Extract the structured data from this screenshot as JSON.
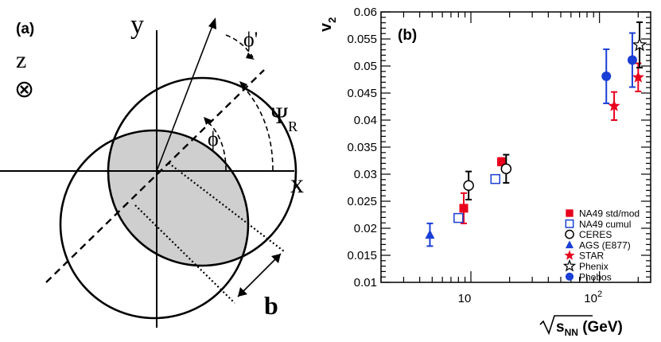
{
  "diagram": {
    "panel_label": "(a)",
    "axis_y": "y",
    "axis_x": "x",
    "axis_z": "z",
    "z_symbol": "⊗",
    "phi_prime": "ϕ'",
    "phi": "ϕ",
    "psi": "Ψ",
    "psi_sub": "R",
    "impact": "b"
  },
  "chart_data": {
    "type": "scatter",
    "panel_label": "(b)",
    "ylabel_main": "v",
    "ylabel_sub": "2",
    "xlabel_main": "s",
    "xlabel_sub": "NN",
    "xlabel_unit": " (GeV)",
    "x_scale": "log",
    "xlim": [
      2,
      250
    ],
    "ylim": [
      0.01,
      0.06
    ],
    "x_ticks": [
      {
        "value": 10,
        "label": "10",
        "sup": ""
      },
      {
        "value": 100,
        "label": "10",
        "sup": "2"
      }
    ],
    "y_ticks": [
      "0.01",
      "0.015",
      "0.02",
      "0.025",
      "0.03",
      "0.035",
      "0.04",
      "0.045",
      "0.05",
      "0.055",
      "0.06"
    ],
    "legend_position": "bottom-right",
    "series": [
      {
        "name": "NA49 std/mod",
        "marker": "square-filled",
        "color": "#e8001c",
        "points": [
          {
            "x": 8.8,
            "y": 0.0237,
            "err": 0.0028
          },
          {
            "x": 17.3,
            "y": 0.0323,
            "err": 0.0007
          }
        ]
      },
      {
        "name": "NA49 cumul",
        "marker": "square-open",
        "color": "#1a3fd6",
        "points": [
          {
            "x": 8.0,
            "y": 0.0219,
            "err": 0.0003
          },
          {
            "x": 15.5,
            "y": 0.0291,
            "err": 0.0003
          }
        ]
      },
      {
        "name": "CERES",
        "marker": "circle-open",
        "color": "#000000",
        "points": [
          {
            "x": 9.6,
            "y": 0.0279,
            "err": 0.0026
          },
          {
            "x": 18.8,
            "y": 0.031,
            "err": 0.0026
          }
        ]
      },
      {
        "name": "AGS (E877)",
        "marker": "triangle-filled",
        "color": "#1a3fd6",
        "points": [
          {
            "x": 4.8,
            "y": 0.0188,
            "err": 0.0021
          }
        ]
      },
      {
        "name": "STAR",
        "marker": "star-filled",
        "color": "#e8001c",
        "points": [
          {
            "x": 130,
            "y": 0.0426,
            "err": 0.0026
          },
          {
            "x": 200,
            "y": 0.0479,
            "err": 0.0026
          }
        ]
      },
      {
        "name": "Phenix",
        "marker": "star-open",
        "color": "#000000",
        "points": [
          {
            "x": 205,
            "y": 0.0539,
            "err": 0.0042
          }
        ]
      },
      {
        "name": "Phobos",
        "marker": "circle-filled",
        "color": "#1a3fd6",
        "points": [
          {
            "x": 113,
            "y": 0.0481,
            "err": 0.005
          },
          {
            "x": 180,
            "y": 0.0511,
            "err": 0.005
          }
        ]
      }
    ]
  }
}
